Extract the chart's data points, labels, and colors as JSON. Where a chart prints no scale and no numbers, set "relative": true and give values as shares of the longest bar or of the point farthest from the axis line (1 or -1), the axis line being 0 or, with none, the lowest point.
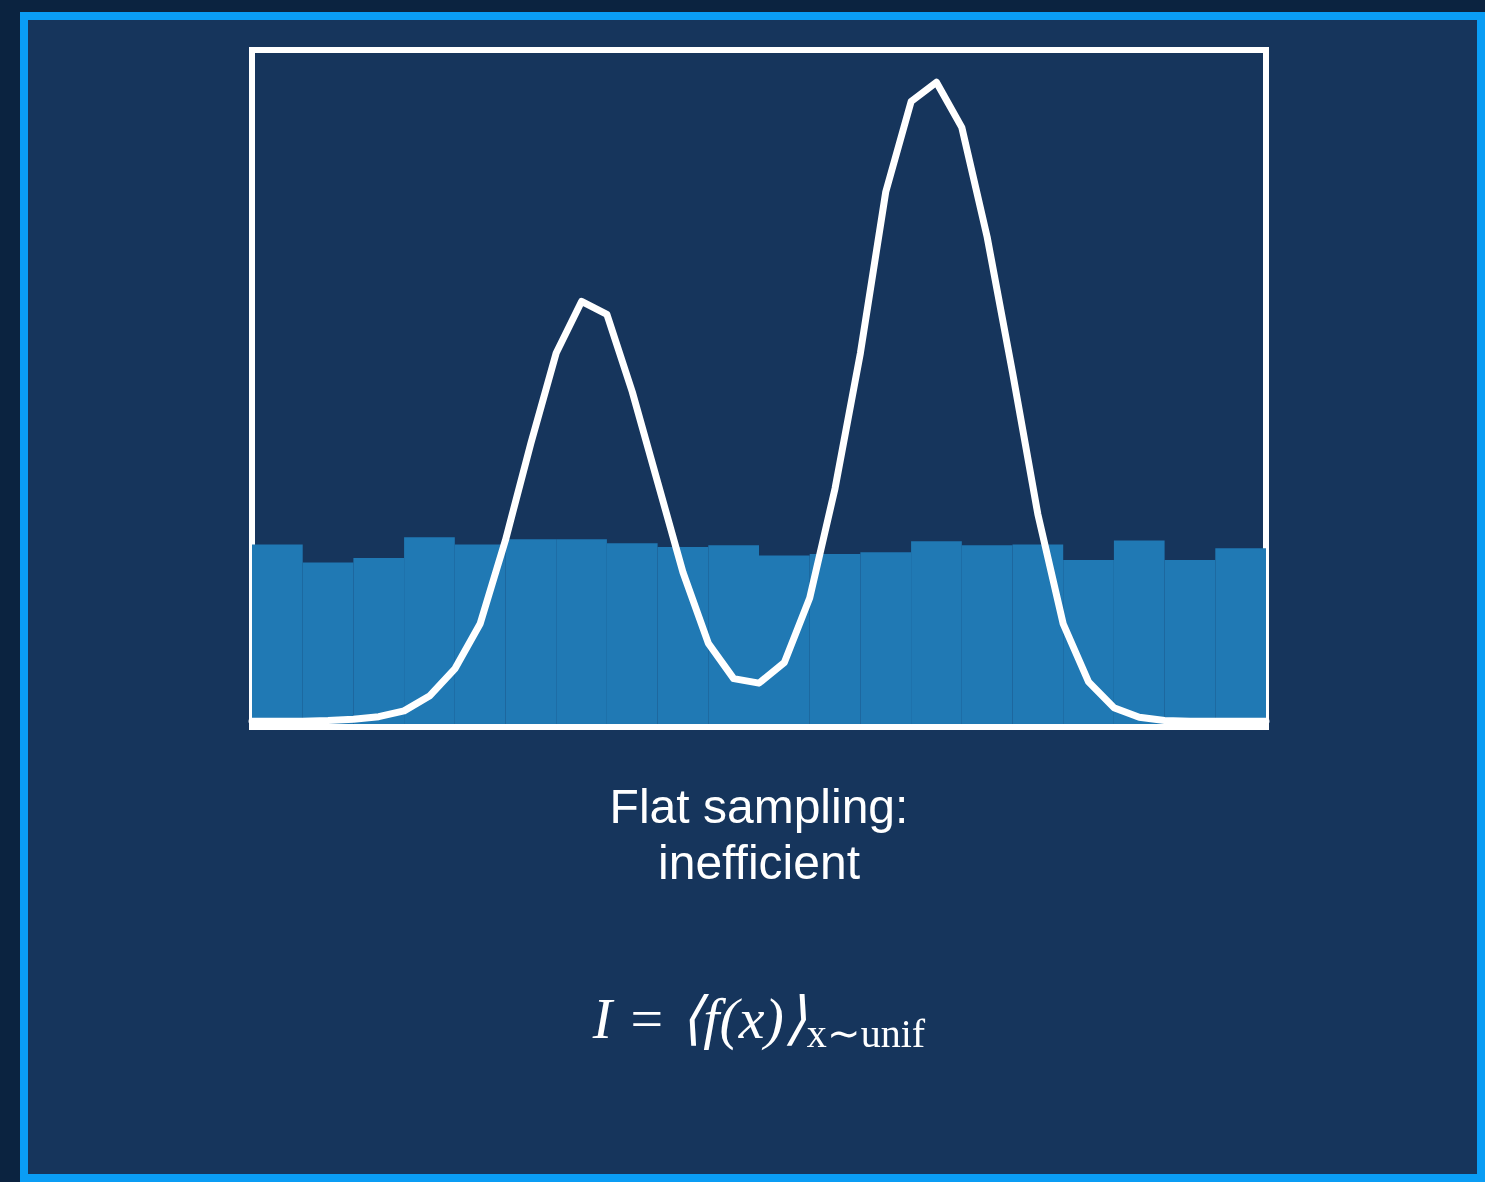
{
  "chart_data": [
    {
      "type": "bar",
      "relative": true,
      "color": "#2079b4",
      "categories": [
        null,
        null,
        null,
        null,
        null,
        null,
        null,
        null,
        null,
        null,
        null,
        null,
        null,
        null,
        null,
        null,
        null,
        null,
        null,
        null
      ],
      "values": [
        0.963,
        0.867,
        0.891,
        1,
        0.963,
        0.99,
        0.99,
        0.969,
        0.949,
        0.959,
        0.905,
        0.912,
        0.922,
        0.98,
        0.959,
        0.963,
        0.881,
        0.983,
        0.881,
        0.942
      ],
      "annotations": [
        "Flat sampling:\ninefficient",
        "I = ⟨f(x)⟩$_{x∼unif}$"
      ]
    },
    {
      "type": "line",
      "relative": true,
      "color": "#ffffff",
      "marker": "none",
      "line_style": "solid",
      "categories": [
        null,
        null,
        null,
        null,
        null,
        null,
        null,
        null,
        null,
        null,
        null,
        null,
        null,
        null,
        null,
        null,
        null,
        null,
        null,
        null,
        null,
        null,
        null,
        null,
        null,
        null,
        null,
        null,
        null,
        null,
        null,
        null,
        null,
        null,
        null,
        null,
        null,
        null,
        null,
        null,
        null
      ],
      "values": [
        0.009,
        0.009,
        0.009,
        0.01,
        0.012,
        0.016,
        0.025,
        0.048,
        0.09,
        0.16,
        0.29,
        0.44,
        0.58,
        0.66,
        0.64,
        0.52,
        0.38,
        0.24,
        0.13,
        0.075,
        0.068,
        0.1,
        0.2,
        0.37,
        0.58,
        0.83,
        0.97,
        1,
        0.93,
        0.76,
        0.55,
        0.33,
        0.16,
        0.07,
        0.03,
        0.015,
        0.01,
        0.009,
        0.009,
        0.009,
        0.009
      ]
    }
  ]
}
